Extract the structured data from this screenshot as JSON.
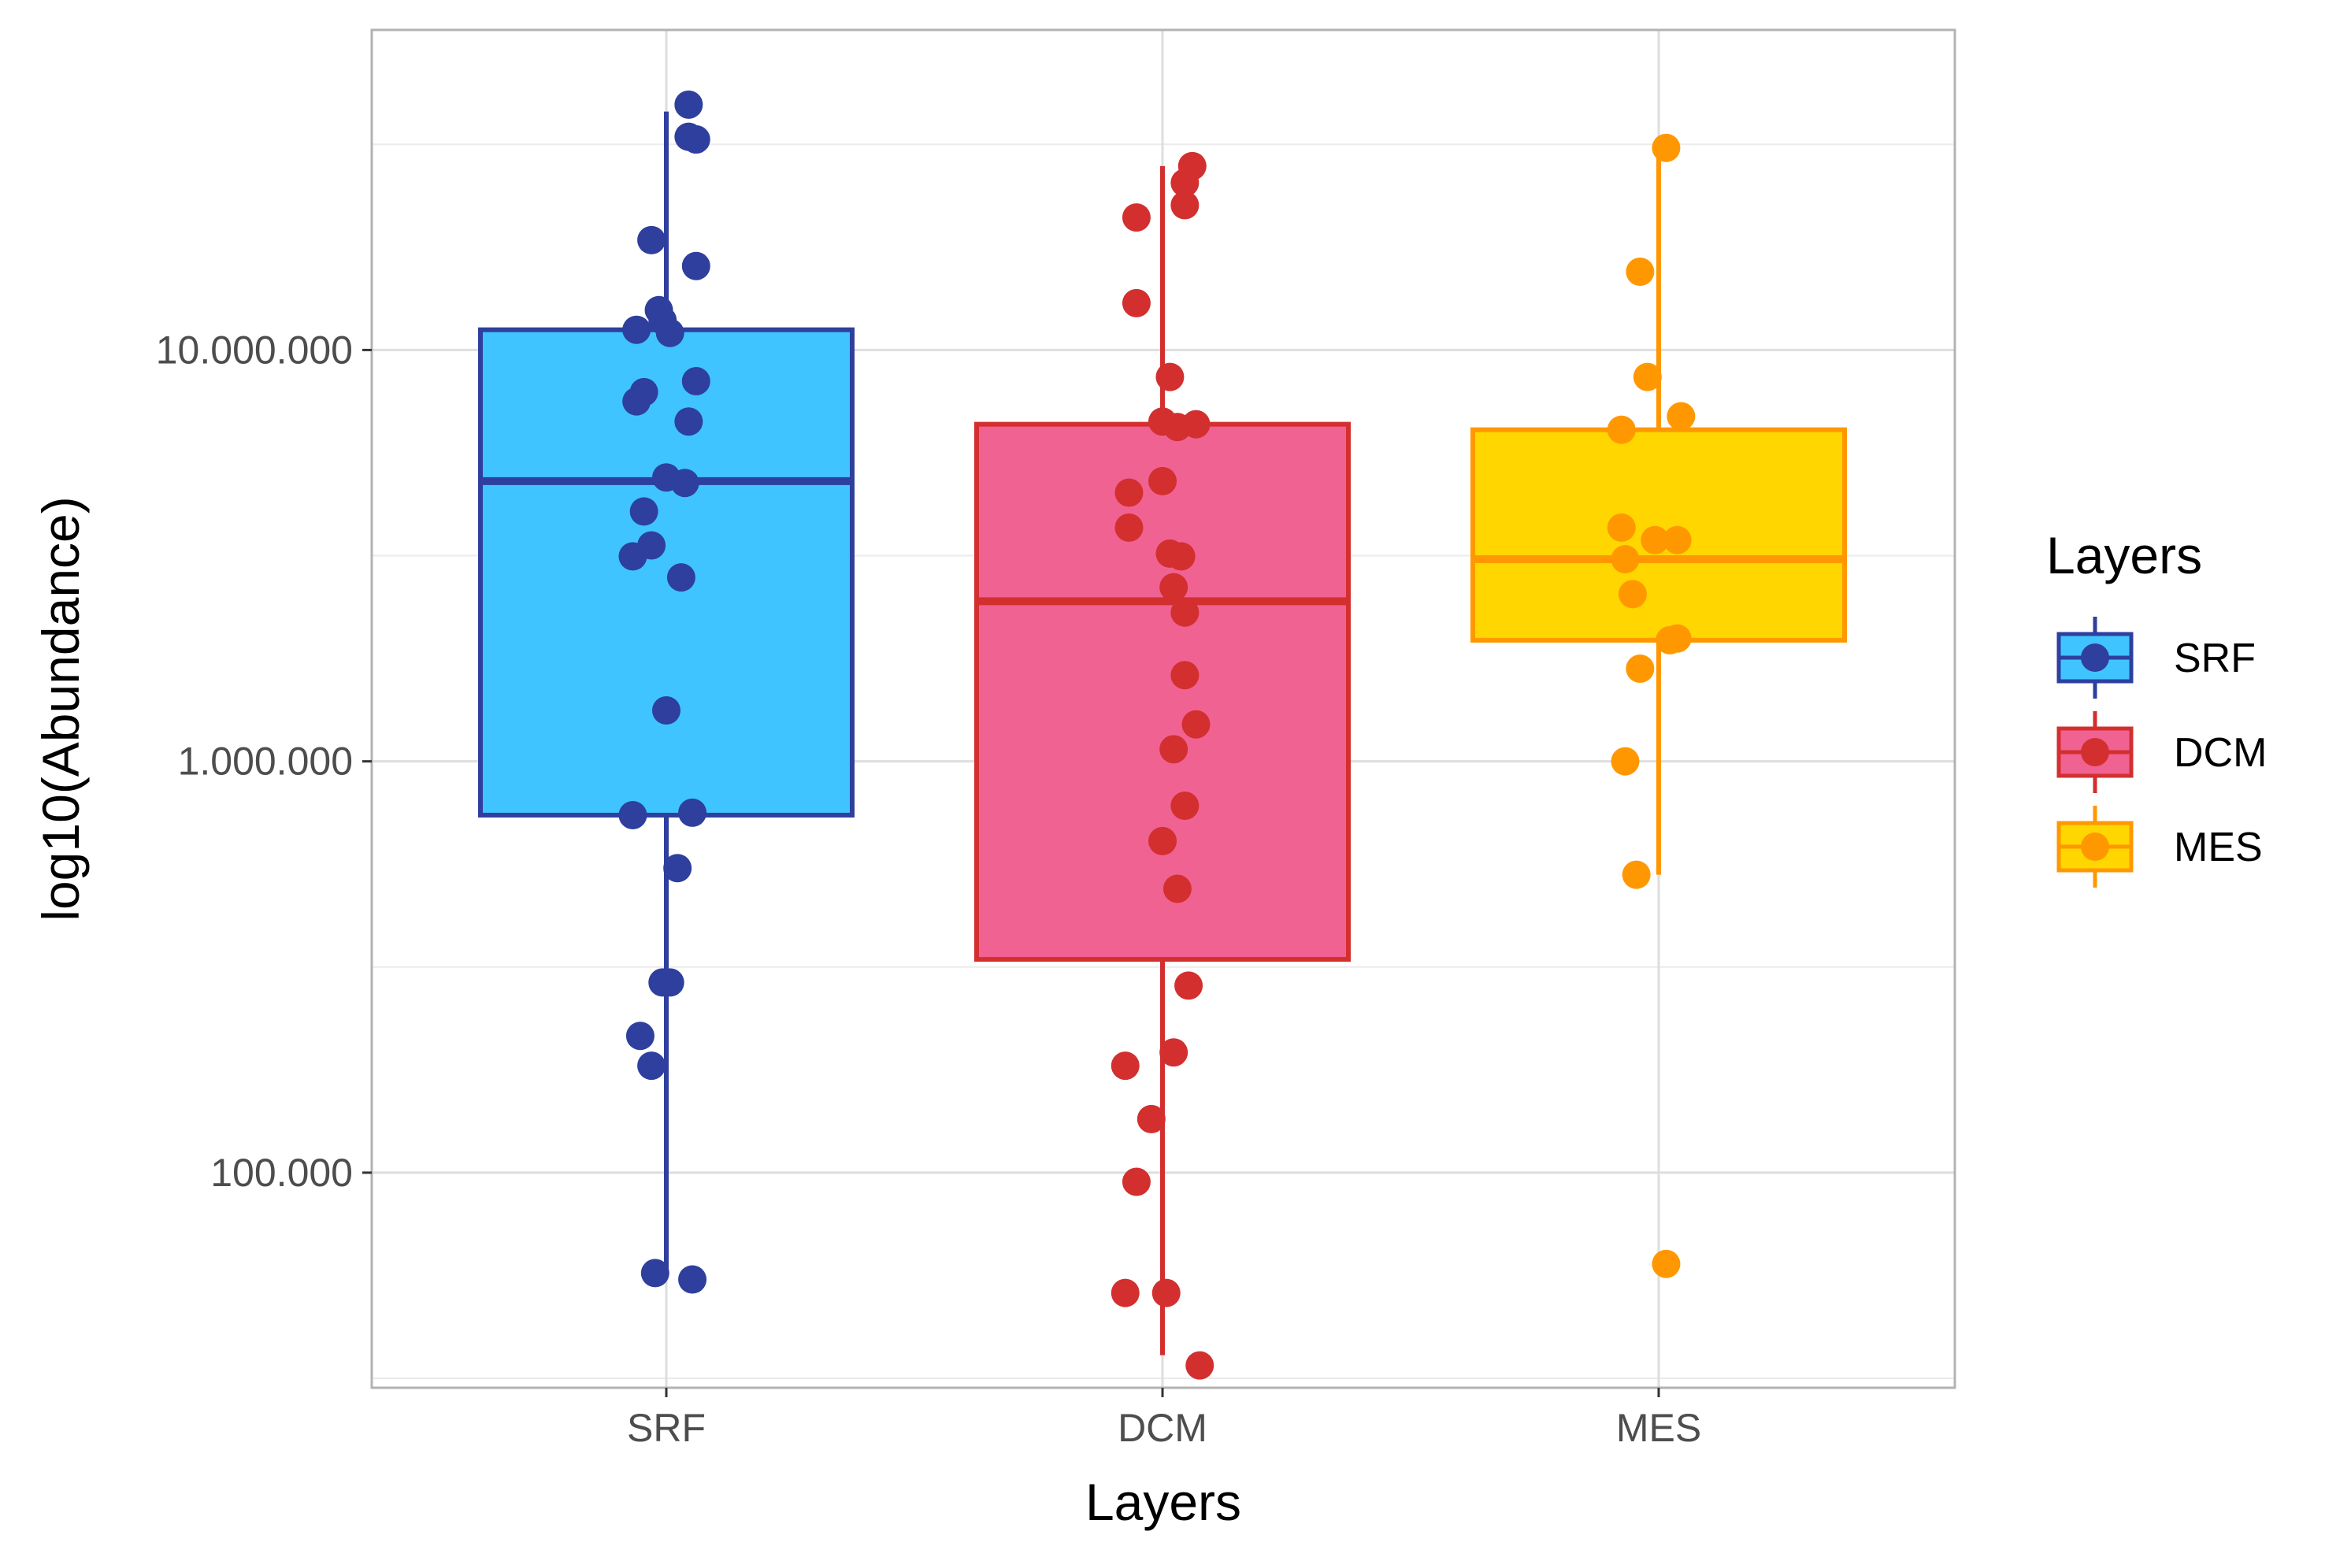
{
  "chart_data": {
    "type": "boxplot",
    "title": "",
    "xlabel": "Layers",
    "ylabel": "log10(Abundance)",
    "y_scale": "log10",
    "ylim": [
      30000,
      60000000
    ],
    "y_ticks": [
      100000,
      1000000,
      10000000
    ],
    "y_tick_labels": [
      "100.000",
      "1.000.000",
      "10.000.000"
    ],
    "categories": [
      "SRF",
      "DCM",
      "MES"
    ],
    "grid": true,
    "legend": {
      "title": "Layers",
      "position": "right",
      "items": [
        "SRF",
        "DCM",
        "MES"
      ]
    },
    "series": [
      {
        "name": "SRF",
        "fill": "#40C4FF",
        "line": "#2E3F9E",
        "box": {
          "whisker_low": 56000,
          "q1": 740000,
          "median": 4800000,
          "q3": 11200000,
          "whisker_high": 38000000
        },
        "points": [
          {
            "x": 0.06,
            "y": 39500000
          },
          {
            "x": 0.06,
            "y": 33000000
          },
          {
            "x": 0.08,
            "y": 32500000
          },
          {
            "x": -0.04,
            "y": 18500000
          },
          {
            "x": 0.08,
            "y": 16000000
          },
          {
            "x": -0.02,
            "y": 12500000
          },
          {
            "x": -0.01,
            "y": 11800000
          },
          {
            "x": -0.08,
            "y": 11200000
          },
          {
            "x": 0.01,
            "y": 11000000
          },
          {
            "x": 0.08,
            "y": 8400000
          },
          {
            "x": -0.06,
            "y": 7900000
          },
          {
            "x": -0.08,
            "y": 7500000
          },
          {
            "x": 0.06,
            "y": 6700000
          },
          {
            "x": 0.0,
            "y": 4900000
          },
          {
            "x": 0.05,
            "y": 4750000
          },
          {
            "x": -0.06,
            "y": 4050000
          },
          {
            "x": -0.04,
            "y": 3350000
          },
          {
            "x": -0.09,
            "y": 3150000
          },
          {
            "x": 0.04,
            "y": 2800000
          },
          {
            "x": 0.0,
            "y": 1330000
          },
          {
            "x": -0.09,
            "y": 740000
          },
          {
            "x": 0.07,
            "y": 750000
          },
          {
            "x": 0.03,
            "y": 550000
          },
          {
            "x": -0.01,
            "y": 290000
          },
          {
            "x": 0.01,
            "y": 290000
          },
          {
            "x": -0.07,
            "y": 215000
          },
          {
            "x": -0.04,
            "y": 182000
          },
          {
            "x": -0.03,
            "y": 57000
          },
          {
            "x": 0.07,
            "y": 55000
          }
        ]
      },
      {
        "name": "DCM",
        "fill": "#F06292",
        "line": "#D32F2F",
        "box": {
          "whisker_low": 36000,
          "q1": 330000,
          "median": 2450000,
          "q3": 6600000,
          "whisker_high": 28000000
        },
        "points": [
          {
            "x": 0.08,
            "y": 28000000
          },
          {
            "x": 0.06,
            "y": 25500000
          },
          {
            "x": 0.06,
            "y": 22500000
          },
          {
            "x": -0.07,
            "y": 21000000
          },
          {
            "x": -0.07,
            "y": 13000000
          },
          {
            "x": 0.02,
            "y": 8600000
          },
          {
            "x": 0.0,
            "y": 6700000
          },
          {
            "x": 0.04,
            "y": 6500000
          },
          {
            "x": 0.09,
            "y": 6600000
          },
          {
            "x": 0.0,
            "y": 4800000
          },
          {
            "x": -0.09,
            "y": 4500000
          },
          {
            "x": -0.09,
            "y": 3700000
          },
          {
            "x": 0.02,
            "y": 3200000
          },
          {
            "x": 0.05,
            "y": 3150000
          },
          {
            "x": 0.03,
            "y": 2650000
          },
          {
            "x": 0.06,
            "y": 2300000
          },
          {
            "x": 0.06,
            "y": 1620000
          },
          {
            "x": 0.09,
            "y": 1230000
          },
          {
            "x": 0.03,
            "y": 1070000
          },
          {
            "x": 0.06,
            "y": 780000
          },
          {
            "x": 0.0,
            "y": 640000
          },
          {
            "x": 0.04,
            "y": 490000
          },
          {
            "x": 0.07,
            "y": 285000
          },
          {
            "x": 0.03,
            "y": 196000
          },
          {
            "x": -0.1,
            "y": 182000
          },
          {
            "x": -0.03,
            "y": 135000
          },
          {
            "x": -0.07,
            "y": 95000
          },
          {
            "x": -0.1,
            "y": 51000
          },
          {
            "x": 0.01,
            "y": 51000
          },
          {
            "x": 0.1,
            "y": 34000
          }
        ]
      },
      {
        "name": "MES",
        "fill": "#FFD600",
        "line": "#FF9800",
        "box": {
          "whisker_low": 530000,
          "q1": 1970000,
          "median": 3100000,
          "q3": 6400000,
          "whisker_high": 31000000
        },
        "points": [
          {
            "x": 0.02,
            "y": 31000000
          },
          {
            "x": -0.05,
            "y": 15500000
          },
          {
            "x": -0.03,
            "y": 8600000
          },
          {
            "x": 0.06,
            "y": 6900000
          },
          {
            "x": -0.1,
            "y": 6400000
          },
          {
            "x": -0.1,
            "y": 3700000
          },
          {
            "x": -0.01,
            "y": 3450000
          },
          {
            "x": 0.05,
            "y": 3450000
          },
          {
            "x": -0.09,
            "y": 3100000
          },
          {
            "x": -0.07,
            "y": 2550000
          },
          {
            "x": 0.03,
            "y": 1970000
          },
          {
            "x": 0.05,
            "y": 1990000
          },
          {
            "x": -0.05,
            "y": 1680000
          },
          {
            "x": -0.09,
            "y": 1000000
          },
          {
            "x": -0.06,
            "y": 530000
          },
          {
            "x": 0.02,
            "y": 60000
          }
        ]
      }
    ]
  }
}
